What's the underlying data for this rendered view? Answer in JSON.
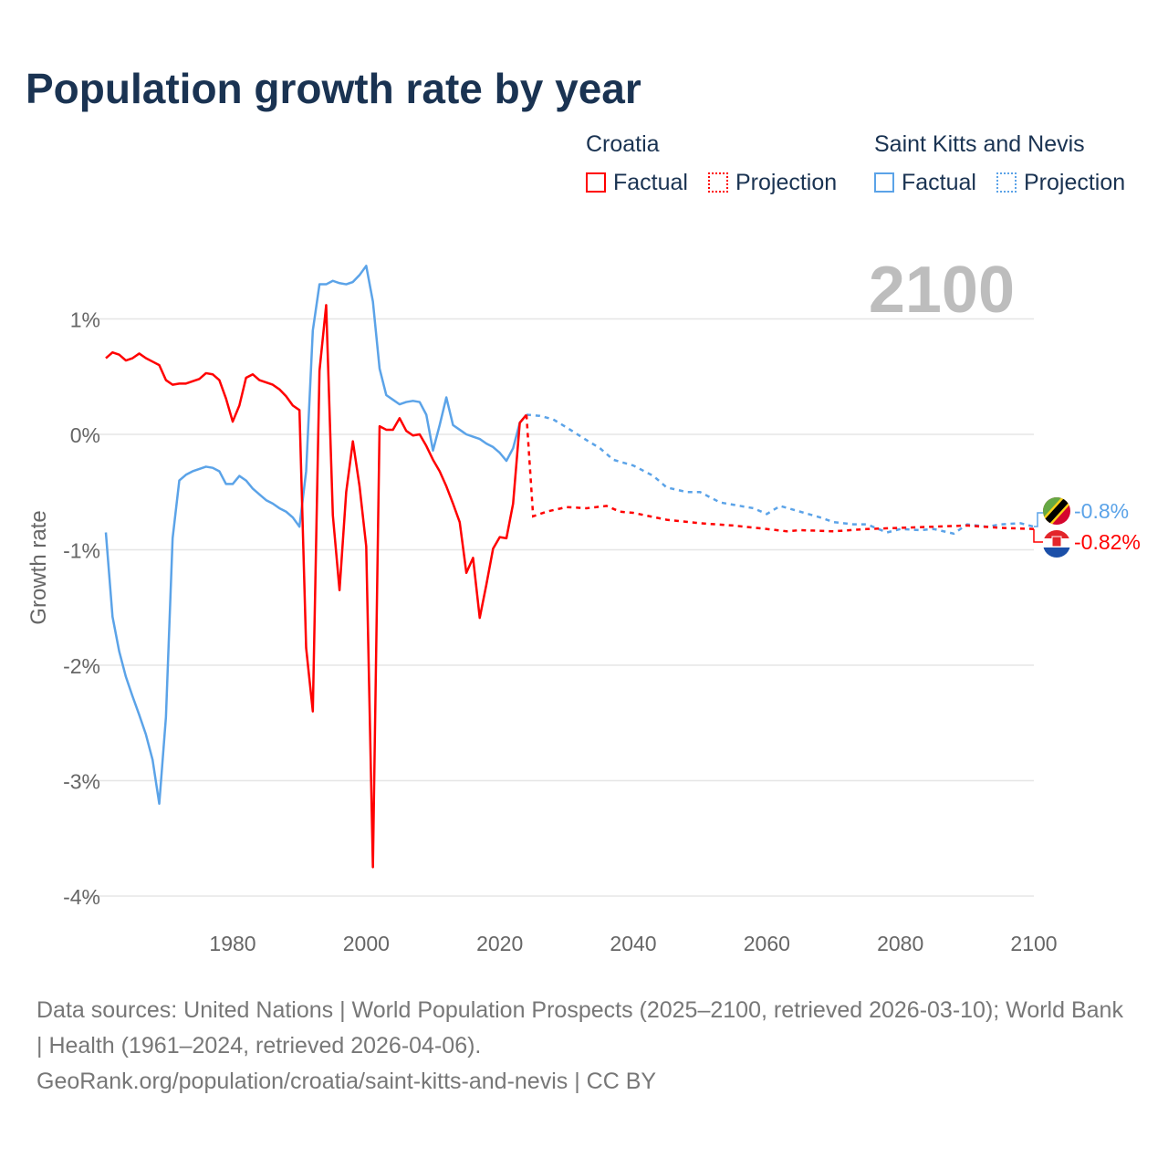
{
  "title": "Population growth rate by year",
  "legend": [
    {
      "group": "Croatia",
      "factual": "Factual",
      "projection": "Projection",
      "color": "#ff0000"
    },
    {
      "group": "Saint Kitts and Nevis",
      "factual": "Factual",
      "projection": "Projection",
      "color": "#5ba3e8"
    }
  ],
  "year_label": "2100",
  "footer": {
    "sources": "Data sources: United Nations | World Population Prospects (2025–2100, retrieved 2026-03-10); World Bank | Health (1961–2024, retrieved 2026-04-06).",
    "credit": "GeoRank.org/population/croatia/saint-kitts-and-nevis | CC BY"
  },
  "chart_data": {
    "type": "line",
    "title": "Population growth rate by year",
    "xlabel": "",
    "ylabel": "Growth rate",
    "xlim": [
      1961,
      2100
    ],
    "ylim": [
      -4.2,
      1.6
    ],
    "x_ticks": [
      1980,
      2000,
      2020,
      2040,
      2060,
      2080,
      2100
    ],
    "y_ticks": [
      {
        "v": 1,
        "label": "1%"
      },
      {
        "v": 0,
        "label": "0%"
      },
      {
        "v": -1,
        "label": "-1%"
      },
      {
        "v": -2,
        "label": "-2%"
      },
      {
        "v": -3,
        "label": "-3%"
      },
      {
        "v": -4,
        "label": "-4%"
      }
    ],
    "grid": true,
    "legend_position": "top-right",
    "series": [
      {
        "name": "Croatia",
        "color": "#ff0000",
        "end_label": "-0.82%",
        "flag": "croatia",
        "factual": {
          "start": 1961,
          "values": [
            0.66,
            0.71,
            0.69,
            0.64,
            0.66,
            0.7,
            0.66,
            0.63,
            0.6,
            0.47,
            0.43,
            0.44,
            0.44,
            0.46,
            0.48,
            0.53,
            0.52,
            0.47,
            0.31,
            0.11,
            0.25,
            0.49,
            0.52,
            0.47,
            0.45,
            0.43,
            0.39,
            0.33,
            0.25,
            0.21,
            -1.85,
            -2.4,
            0.55,
            1.12,
            -0.7,
            -1.35,
            -0.5,
            -0.06,
            -0.45,
            -0.97,
            -3.75,
            0.07,
            0.04,
            0.04,
            0.14,
            0.03,
            -0.01,
            0.0,
            -0.1,
            -0.22,
            -0.32,
            -0.45,
            -0.6,
            -0.76,
            -1.2,
            -1.07,
            -1.59,
            -1.3,
            -0.99,
            -0.89,
            -0.9,
            -0.6,
            0.1,
            0.17
          ]
        },
        "projection": {
          "x": [
            2024,
            2025,
            2027,
            2030,
            2033,
            2036,
            2038,
            2040,
            2045,
            2050,
            2055,
            2060,
            2063,
            2065,
            2070,
            2075,
            2080,
            2085,
            2090,
            2095,
            2100
          ],
          "values": [
            0.17,
            -0.71,
            -0.67,
            -0.63,
            -0.64,
            -0.62,
            -0.67,
            -0.68,
            -0.74,
            -0.77,
            -0.79,
            -0.82,
            -0.84,
            -0.83,
            -0.84,
            -0.82,
            -0.81,
            -0.8,
            -0.79,
            -0.81,
            -0.82
          ]
        }
      },
      {
        "name": "Saint Kitts and Nevis",
        "color": "#5ba3e8",
        "end_label": "-0.8%",
        "flag": "saint-kitts-and-nevis",
        "factual": {
          "start": 1961,
          "values": [
            -0.85,
            -1.58,
            -1.88,
            -2.1,
            -2.27,
            -2.43,
            -2.6,
            -2.82,
            -3.2,
            -2.45,
            -0.9,
            -0.4,
            -0.35,
            -0.32,
            -0.3,
            -0.28,
            -0.29,
            -0.32,
            -0.43,
            -0.43,
            -0.36,
            -0.4,
            -0.47,
            -0.52,
            -0.57,
            -0.6,
            -0.64,
            -0.67,
            -0.72,
            -0.8,
            -0.32,
            0.9,
            1.3,
            1.3,
            1.33,
            1.31,
            1.3,
            1.32,
            1.38,
            1.46,
            1.15,
            0.57,
            0.34,
            0.3,
            0.26,
            0.28,
            0.29,
            0.28,
            0.17,
            -0.14,
            0.08,
            0.32,
            0.08,
            0.04,
            0.0,
            -0.02,
            -0.04,
            -0.08,
            -0.11,
            -0.16,
            -0.23,
            -0.12,
            0.1,
            0.17
          ]
        },
        "projection": {
          "x": [
            2024,
            2026,
            2028,
            2030,
            2033,
            2035,
            2037,
            2040,
            2043,
            2045,
            2048,
            2050,
            2053,
            2056,
            2058,
            2060,
            2062,
            2065,
            2068,
            2070,
            2073,
            2075,
            2078,
            2080,
            2083,
            2085,
            2088,
            2090,
            2093,
            2095,
            2098,
            2100
          ],
          "values": [
            0.17,
            0.16,
            0.13,
            0.06,
            -0.05,
            -0.12,
            -0.22,
            -0.27,
            -0.36,
            -0.46,
            -0.5,
            -0.5,
            -0.59,
            -0.62,
            -0.64,
            -0.69,
            -0.62,
            -0.67,
            -0.72,
            -0.76,
            -0.78,
            -0.78,
            -0.85,
            -0.82,
            -0.83,
            -0.82,
            -0.86,
            -0.78,
            -0.8,
            -0.78,
            -0.77,
            -0.8
          ]
        }
      }
    ]
  }
}
